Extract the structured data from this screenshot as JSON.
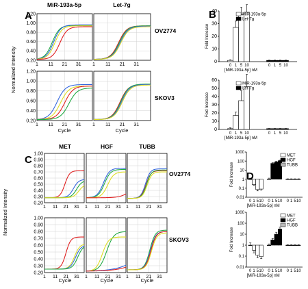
{
  "panels": {
    "A": {
      "label": "A",
      "columns": [
        "MiR-193a-5p",
        "Let-7g"
      ],
      "rows": [
        "OV2774",
        "SKOV3"
      ],
      "ylabel": "Normalized Intensity",
      "xlabel": "Cycle"
    },
    "B": {
      "label": "B"
    },
    "C": {
      "label": "C",
      "columns": [
        "MET",
        "HGF",
        "TUBB"
      ],
      "rows": [
        "OV2774",
        "SKOV3"
      ],
      "ylabel": "Normalized Intensity",
      "xlabel": "Cycle"
    },
    "D": {
      "label": "D"
    }
  },
  "chart_data": [
    {
      "panel": "A",
      "type": "line",
      "xlabel": "Cycle",
      "ylabel": "Normalized Intensity",
      "x_ticks": [
        "1",
        "11",
        "21",
        "31"
      ],
      "y_ticks": [
        "0.20",
        "0.40",
        "0.60",
        "0.80",
        "1.00",
        "1.20"
      ],
      "ylim": [
        0.2,
        1.2
      ],
      "subplots": [
        {
          "column": "MiR-193a-5p",
          "row": "OV2774",
          "curves": [
            {
              "color": "#22aa44",
              "midpoint": 12,
              "min": 0.22,
              "max": 0.95,
              "slope": 0.38
            },
            {
              "color": "#3366dd",
              "midpoint": 13,
              "min": 0.22,
              "max": 0.96,
              "slope": 0.38
            },
            {
              "color": "#dddd22",
              "midpoint": 14,
              "min": 0.22,
              "max": 0.94,
              "slope": 0.38
            },
            {
              "color": "#e02020",
              "midpoint": 17.5,
              "min": 0.22,
              "max": 0.92,
              "slope": 0.38
            }
          ]
        },
        {
          "column": "Let-7g",
          "row": "OV2774",
          "curves": [
            {
              "color": "#e02020",
              "midpoint": 18.5,
              "min": 0.22,
              "max": 0.94,
              "slope": 0.35
            },
            {
              "color": "#22aa44",
              "midpoint": 19,
              "min": 0.22,
              "max": 0.94,
              "slope": 0.35
            },
            {
              "color": "#3366dd",
              "midpoint": 19.5,
              "min": 0.22,
              "max": 0.93,
              "slope": 0.35
            },
            {
              "color": "#dddd22",
              "midpoint": 20,
              "min": 0.22,
              "max": 0.92,
              "slope": 0.35
            }
          ]
        },
        {
          "column": "MiR-193a-5p",
          "row": "SKOV3",
          "curves": [
            {
              "color": "#3366dd",
              "midpoint": 15.5,
              "min": 0.22,
              "max": 0.93,
              "slope": 0.33
            },
            {
              "color": "#dddd22",
              "midpoint": 18,
              "min": 0.22,
              "max": 0.9,
              "slope": 0.33
            },
            {
              "color": "#e02020",
              "midpoint": 21,
              "min": 0.22,
              "max": 0.9,
              "slope": 0.33
            },
            {
              "color": "#22aa44",
              "midpoint": 24,
              "min": 0.22,
              "max": 0.86,
              "slope": 0.33
            }
          ]
        },
        {
          "column": "Let-7g",
          "row": "SKOV3",
          "curves": [
            {
              "color": "#e02020",
              "midpoint": 19.5,
              "min": 0.22,
              "max": 0.93,
              "slope": 0.35
            },
            {
              "color": "#22aa44",
              "midpoint": 20,
              "min": 0.22,
              "max": 0.94,
              "slope": 0.35
            },
            {
              "color": "#3366dd",
              "midpoint": 20.5,
              "min": 0.22,
              "max": 0.93,
              "slope": 0.35
            },
            {
              "color": "#dddd22",
              "midpoint": 21,
              "min": 0.22,
              "max": 0.92,
              "slope": 0.35
            }
          ]
        }
      ]
    },
    {
      "panel": "B",
      "type": "bar",
      "ylabel": "Fold Increase",
      "xlabel": "[MiR-193a-5p] nM",
      "categories": [
        "0",
        "1",
        "5",
        "10"
      ],
      "subplots": [
        {
          "ylim": [
            0,
            40
          ],
          "y_ticks": [
            "0",
            "10",
            "20",
            "30",
            "40"
          ],
          "series": [
            {
              "name": "MiR-193a-5p",
              "color": "#ffffff",
              "values": [
                1,
                27,
                37,
                39
              ],
              "errors": [
                0.5,
                5,
                6,
                6
              ]
            },
            {
              "name": "Let-7g",
              "color": "#000000",
              "values": [
                1,
                1,
                1,
                1
              ],
              "errors": [
                0.2,
                0.2,
                0.2,
                0.2
              ]
            }
          ]
        },
        {
          "ylim": [
            0,
            60
          ],
          "y_ticks": [
            "0",
            "10",
            "20",
            "30",
            "40",
            "50",
            "60"
          ],
          "series": [
            {
              "name": "MiR-193a-5p",
              "color": "#ffffff",
              "values": [
                1,
                17,
                35,
                52
              ],
              "errors": [
                1,
                4,
                12,
                15
              ]
            },
            {
              "name": "Let-7g",
              "color": "#000000",
              "values": [
                1,
                1,
                1,
                1
              ],
              "errors": [
                0.2,
                0.2,
                0.2,
                0.2
              ]
            }
          ]
        }
      ]
    },
    {
      "panel": "C",
      "type": "line",
      "xlabel": "Cycle",
      "ylabel": "Normalized Intensity",
      "x_ticks": [
        "1",
        "11",
        "21",
        "31"
      ],
      "y_ticks": [
        "0.20",
        "0.30",
        "0.40",
        "0.50",
        "0.60",
        "0.70",
        "0.80",
        "0.90",
        "1.00"
      ],
      "ylim": [
        0.2,
        1.0
      ],
      "subplots": [
        {
          "column": "MET",
          "row": "OV2774",
          "curves": [
            {
              "color": "#e02020",
              "midpoint": 20,
              "min": 0.28,
              "max": 0.72,
              "slope": 0.45
            },
            {
              "color": "#3366dd",
              "midpoint": 28,
              "min": 0.28,
              "max": 0.58,
              "slope": 0.4
            },
            {
              "color": "#22aa44",
              "midpoint": 31,
              "min": 0.28,
              "max": 0.56,
              "slope": 0.4
            },
            {
              "color": "#dddd22",
              "midpoint": 33,
              "min": 0.28,
              "max": 0.5,
              "slope": 0.4
            }
          ]
        },
        {
          "column": "HGF",
          "row": "OV2774",
          "curves": [
            {
              "color": "#3366dd",
              "midpoint": 17,
              "min": 0.28,
              "max": 0.76,
              "slope": 0.35
            },
            {
              "color": "#22aa44",
              "midpoint": 18,
              "min": 0.28,
              "max": 0.74,
              "slope": 0.35
            },
            {
              "color": "#dddd22",
              "midpoint": 21,
              "min": 0.28,
              "max": 0.7,
              "slope": 0.35
            },
            {
              "color": "#e02020",
              "midpoint": 45,
              "min": 0.28,
              "max": 0.6,
              "slope": 0.2
            }
          ]
        },
        {
          "column": "TUBB",
          "row": "OV2774",
          "curves": [
            {
              "color": "#3366dd",
              "midpoint": 18,
              "min": 0.27,
              "max": 0.75,
              "slope": 0.45
            },
            {
              "color": "#e02020",
              "midpoint": 18.5,
              "min": 0.27,
              "max": 0.72,
              "slope": 0.45
            },
            {
              "color": "#22aa44",
              "midpoint": 19,
              "min": 0.27,
              "max": 0.73,
              "slope": 0.45
            },
            {
              "color": "#dddd22",
              "midpoint": 19.5,
              "min": 0.27,
              "max": 0.7,
              "slope": 0.45
            }
          ]
        },
        {
          "column": "MET",
          "row": "SKOV3",
          "curves": [
            {
              "color": "#e02020",
              "midpoint": 21,
              "min": 0.25,
              "max": 0.72,
              "slope": 0.45
            },
            {
              "color": "#dddd22",
              "midpoint": 29,
              "min": 0.25,
              "max": 0.62,
              "slope": 0.4
            },
            {
              "color": "#3366dd",
              "midpoint": 30,
              "min": 0.25,
              "max": 0.6,
              "slope": 0.4
            },
            {
              "color": "#22aa44",
              "midpoint": 32,
              "min": 0.25,
              "max": 0.6,
              "slope": 0.4
            }
          ]
        },
        {
          "column": "HGF",
          "row": "SKOV3",
          "curves": [
            {
              "color": "#22aa44",
              "midpoint": 20,
              "min": 0.22,
              "max": 0.8,
              "slope": 0.3
            },
            {
              "color": "#dddd22",
              "midpoint": 16,
              "min": 0.22,
              "max": 0.72,
              "slope": 0.35
            },
            {
              "color": "#3366dd",
              "midpoint": 50,
              "min": 0.22,
              "max": 0.6,
              "slope": 0.1
            },
            {
              "color": "#e02020",
              "midpoint": 55,
              "min": 0.22,
              "max": 0.6,
              "slope": 0.1
            }
          ]
        },
        {
          "column": "TUBB",
          "row": "SKOV3",
          "curves": [
            {
              "color": "#22aa44",
              "midpoint": 22,
              "min": 0.24,
              "max": 0.82,
              "slope": 0.4
            },
            {
              "color": "#3366dd",
              "midpoint": 22.5,
              "min": 0.24,
              "max": 0.8,
              "slope": 0.4
            },
            {
              "color": "#e02020",
              "midpoint": 23,
              "min": 0.24,
              "max": 0.8,
              "slope": 0.4
            },
            {
              "color": "#dddd22",
              "midpoint": 23.5,
              "min": 0.24,
              "max": 0.78,
              "slope": 0.4
            }
          ]
        }
      ]
    },
    {
      "panel": "D",
      "type": "bar",
      "ylabel": "Fold Increase",
      "xlabel": "[MiR-193a-5p] nM",
      "categories": [
        "0",
        "1",
        "5",
        "10"
      ],
      "yscale": "log",
      "subplots": [
        {
          "ylim": [
            0.01,
            1000
          ],
          "y_ticks": [
            "0.01",
            "0.1",
            "1",
            "10",
            "100",
            "1000"
          ],
          "series": [
            {
              "name": "MET",
              "color": "#ffffff",
              "values": [
                1,
                0.25,
                0.07,
                0.08
              ],
              "errors": [
                0.3,
                0.05,
                0.02,
                0.02
              ]
            },
            {
              "name": "HGF",
              "color": "#000000",
              "values": [
                1,
                55,
                80,
                110
              ],
              "errors": [
                0.3,
                10,
                12,
                15
              ]
            },
            {
              "name": "TUBB",
              "color": "#bbbbbb",
              "values": [
                1,
                1,
                1,
                1
              ],
              "errors": [
                0.1,
                0.1,
                0.1,
                0.1
              ]
            }
          ]
        },
        {
          "ylim": [
            0.01,
            1000
          ],
          "y_ticks": [
            "0.01",
            "0.1",
            "1",
            "10",
            "100",
            "1000"
          ],
          "series": [
            {
              "name": "MET",
              "color": "#ffffff",
              "values": [
                1,
                0.35,
                0.12,
                0.09
              ],
              "errors": [
                0.6,
                0.15,
                0.05,
                0.03
              ]
            },
            {
              "name": "HGF",
              "color": "#000000",
              "values": [
                1,
                3,
                10,
                30
              ],
              "errors": [
                0.3,
                1,
                5,
                15
              ]
            },
            {
              "name": "TUBB",
              "color": "#bbbbbb",
              "values": [
                1,
                1,
                1,
                1
              ],
              "errors": [
                0.1,
                0.1,
                0.1,
                0.1
              ]
            }
          ]
        }
      ]
    }
  ]
}
